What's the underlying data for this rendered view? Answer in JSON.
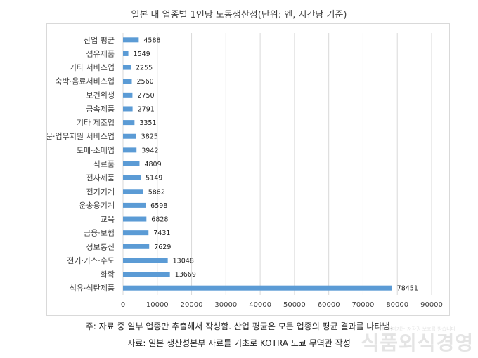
{
  "chart_data": {
    "type": "bar",
    "orientation": "horizontal",
    "title": "일본 내 업종별 1인당 노동생산성(단위: 엔, 시간당 기준)",
    "categories": [
      "산업 평균",
      "섬유제품",
      "기타 서비스업",
      "숙박·음료서비스업",
      "보건위생",
      "금속제품",
      "기타 제조업",
      "전문·업무지원 서비스업",
      "도매·소매업",
      "식료품",
      "전자제품",
      "전기기계",
      "운송용기계",
      "교육",
      "금융·보험",
      "정보통신",
      "전기·가스·수도",
      "화학",
      "석유·석탄제품"
    ],
    "values": [
      4588,
      1549,
      2255,
      2560,
      2750,
      2791,
      3351,
      3825,
      3942,
      4809,
      5149,
      5882,
      6598,
      6828,
      7431,
      7629,
      13048,
      13669,
      78451
    ],
    "xlim": [
      0,
      90000
    ],
    "xticks": [
      "0",
      "10000",
      "20000",
      "30000",
      "40000",
      "50000",
      "60000",
      "70000",
      "80000",
      "90000"
    ],
    "grid": true,
    "bar_color": "#5b9bd5"
  },
  "notes": {
    "note1": "주: 자료 중 일부 업종만 추출해서 작성함. 산업 평균은 모든 업종의 평균 결과를 나타냄.",
    "note2": "자료: 일본 생산성본부 자료를 기초로 KOTRA 도쿄 무역관 작성"
  },
  "watermark": {
    "text": "식품외식경영",
    "small_text": "본 이미지는 저작권 보호를 받습니다"
  }
}
